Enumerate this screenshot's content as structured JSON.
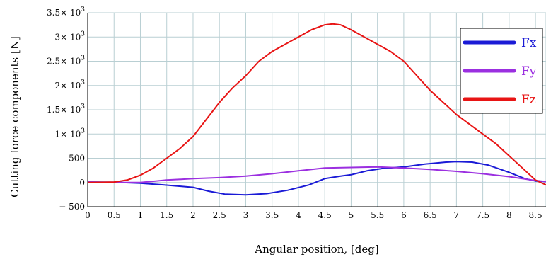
{
  "chart_data": {
    "type": "line",
    "xlabel": "Angular position, [deg]",
    "ylabel": "Cutting force components [N]",
    "xlim": [
      0,
      8.7
    ],
    "ylim": [
      -500,
      3500
    ],
    "grid": true,
    "legend_position": "top-right",
    "x_ticks": [
      {
        "value": 0,
        "label": "0"
      },
      {
        "value": 0.5,
        "label": "0.5"
      },
      {
        "value": 1,
        "label": "1"
      },
      {
        "value": 1.5,
        "label": "1.5"
      },
      {
        "value": 2,
        "label": "2"
      },
      {
        "value": 2.5,
        "label": "2.5"
      },
      {
        "value": 3,
        "label": "3"
      },
      {
        "value": 3.5,
        "label": "3.5"
      },
      {
        "value": 4,
        "label": "4"
      },
      {
        "value": 4.5,
        "label": "4.5"
      },
      {
        "value": 5,
        "label": "5"
      },
      {
        "value": 5.5,
        "label": "5.5"
      },
      {
        "value": 6,
        "label": "6"
      },
      {
        "value": 6.5,
        "label": "6.5"
      },
      {
        "value": 7,
        "label": "7"
      },
      {
        "value": 7.5,
        "label": "7.5"
      },
      {
        "value": 8,
        "label": "8"
      },
      {
        "value": 8.5,
        "label": "8.5"
      }
    ],
    "y_ticks": [
      {
        "value": -500,
        "label": "− 500",
        "sup": ""
      },
      {
        "value": 0,
        "label": "0",
        "sup": ""
      },
      {
        "value": 500,
        "label": "500",
        "sup": ""
      },
      {
        "value": 1000,
        "label": "1× 10",
        "sup": "3"
      },
      {
        "value": 1500,
        "label": "1.5× 10",
        "sup": "3"
      },
      {
        "value": 2000,
        "label": "2× 10",
        "sup": "3"
      },
      {
        "value": 2500,
        "label": "2.5× 10",
        "sup": "3"
      },
      {
        "value": 3000,
        "label": "3× 10",
        "sup": "3"
      },
      {
        "value": 3500,
        "label": "3.5× 10",
        "sup": "3"
      }
    ],
    "series": [
      {
        "name": "Fx",
        "color": "#1a1ad6",
        "x": [
          0,
          0.5,
          1,
          1.5,
          2,
          2.3,
          2.6,
          3,
          3.4,
          3.8,
          4.2,
          4.5,
          4.8,
          5,
          5.3,
          5.6,
          6,
          6.4,
          6.8,
          7,
          7.3,
          7.6,
          8,
          8.3,
          8.5,
          8.7
        ],
        "y": [
          10,
          5,
          -15,
          -55,
          -100,
          -180,
          -240,
          -255,
          -230,
          -160,
          -50,
          80,
          130,
          160,
          240,
          290,
          320,
          380,
          420,
          430,
          420,
          360,
          210,
          80,
          30,
          20
        ]
      },
      {
        "name": "Fy",
        "color": "#9b2fe0",
        "x": [
          0,
          0.5,
          1,
          1.5,
          2,
          2.5,
          3,
          3.5,
          4,
          4.5,
          5,
          5.5,
          6,
          6.5,
          7,
          7.5,
          8,
          8.5,
          8.7
        ],
        "y": [
          10,
          0,
          0,
          50,
          80,
          100,
          130,
          180,
          240,
          300,
          310,
          320,
          300,
          270,
          230,
          180,
          120,
          40,
          20
        ]
      },
      {
        "name": "Fz",
        "color": "#e81414",
        "x": [
          0,
          0.5,
          0.75,
          1,
          1.25,
          1.5,
          1.75,
          2,
          2.25,
          2.5,
          2.75,
          3,
          3.25,
          3.5,
          3.75,
          4,
          4.25,
          4.5,
          4.65,
          4.8,
          5,
          5.25,
          5.5,
          5.75,
          6,
          6.25,
          6.5,
          6.75,
          7,
          7.25,
          7.5,
          7.75,
          8,
          8.25,
          8.5,
          8.7
        ],
        "y": [
          0,
          10,
          50,
          150,
          300,
          500,
          700,
          950,
          1300,
          1650,
          1950,
          2200,
          2500,
          2700,
          2850,
          3000,
          3150,
          3250,
          3270,
          3250,
          3150,
          3000,
          2850,
          2700,
          2500,
          2200,
          1900,
          1650,
          1400,
          1200,
          1000,
          800,
          550,
          300,
          50,
          -50
        ]
      }
    ]
  }
}
